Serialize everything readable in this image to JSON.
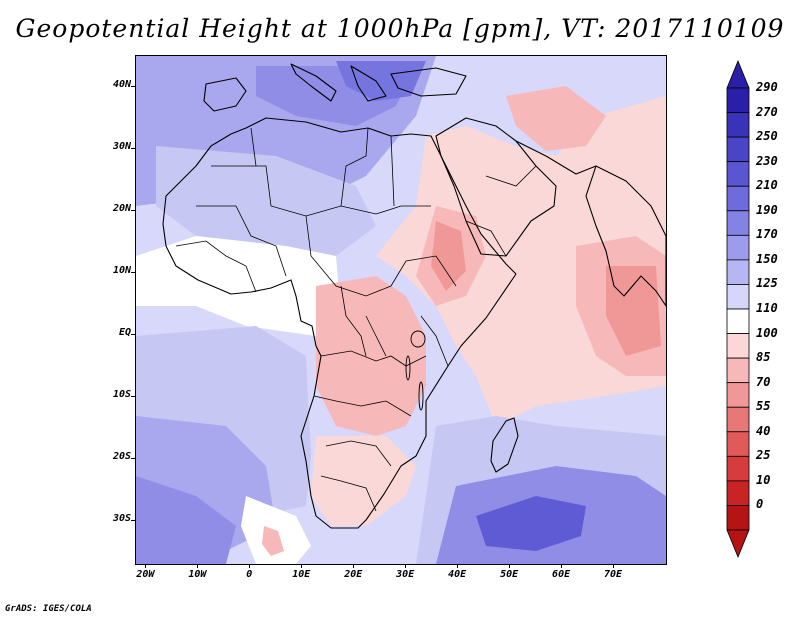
{
  "title": "Geopotential Height at 1000hPa [gpm], VT: 2017110109",
  "credit": "GrADS: IGES/COLA",
  "map": {
    "lon_range": [
      -22,
      80
    ],
    "lat_range": [
      -37,
      45
    ],
    "lat_ticks": [
      {
        "value": 40,
        "label": "40N"
      },
      {
        "value": 30,
        "label": "30N"
      },
      {
        "value": 20,
        "label": "20N"
      },
      {
        "value": 10,
        "label": "10N"
      },
      {
        "value": 0,
        "label": "EQ"
      },
      {
        "value": -10,
        "label": "10S"
      },
      {
        "value": -20,
        "label": "20S"
      },
      {
        "value": -30,
        "label": "30S"
      }
    ],
    "lon_ticks": [
      {
        "value": -20,
        "label": "20W"
      },
      {
        "value": -10,
        "label": "10W"
      },
      {
        "value": 0,
        "label": "0"
      },
      {
        "value": 10,
        "label": "10E"
      },
      {
        "value": 20,
        "label": "20E"
      },
      {
        "value": 30,
        "label": "30E"
      },
      {
        "value": 40,
        "label": "40E"
      },
      {
        "value": 50,
        "label": "50E"
      },
      {
        "value": 60,
        "label": "60E"
      },
      {
        "value": 70,
        "label": "70E"
      }
    ]
  },
  "colorbar": {
    "levels": [
      "290",
      "270",
      "250",
      "230",
      "210",
      "190",
      "170",
      "150",
      "125",
      "110",
      "100",
      "85",
      "70",
      "55",
      "40",
      "25",
      "10",
      "0"
    ],
    "colors": [
      "#2a1fa8",
      "#3a32b8",
      "#4a44c6",
      "#5a56d2",
      "#6e6cdc",
      "#8482e4",
      "#9c9bec",
      "#b6b6f2",
      "#d6d6f8",
      "#ffffff",
      "#fbd8d8",
      "#f6b8b8",
      "#f09898",
      "#e87878",
      "#e05a5a",
      "#d63c3c",
      "#c82424",
      "#b41414"
    ]
  },
  "field": {
    "contour_colors": {
      "c150": "#c7c7f4",
      "c170": "#a9a8ee",
      "c190": "#8f8de6",
      "c210": "#7674de",
      "c230": "#5e5bd4",
      "c110": "#ffffff",
      "c100": "#fbd8d8",
      "c85": "#f6b8b8",
      "c70": "#f09898",
      "base": "#d8d8fa"
    }
  }
}
